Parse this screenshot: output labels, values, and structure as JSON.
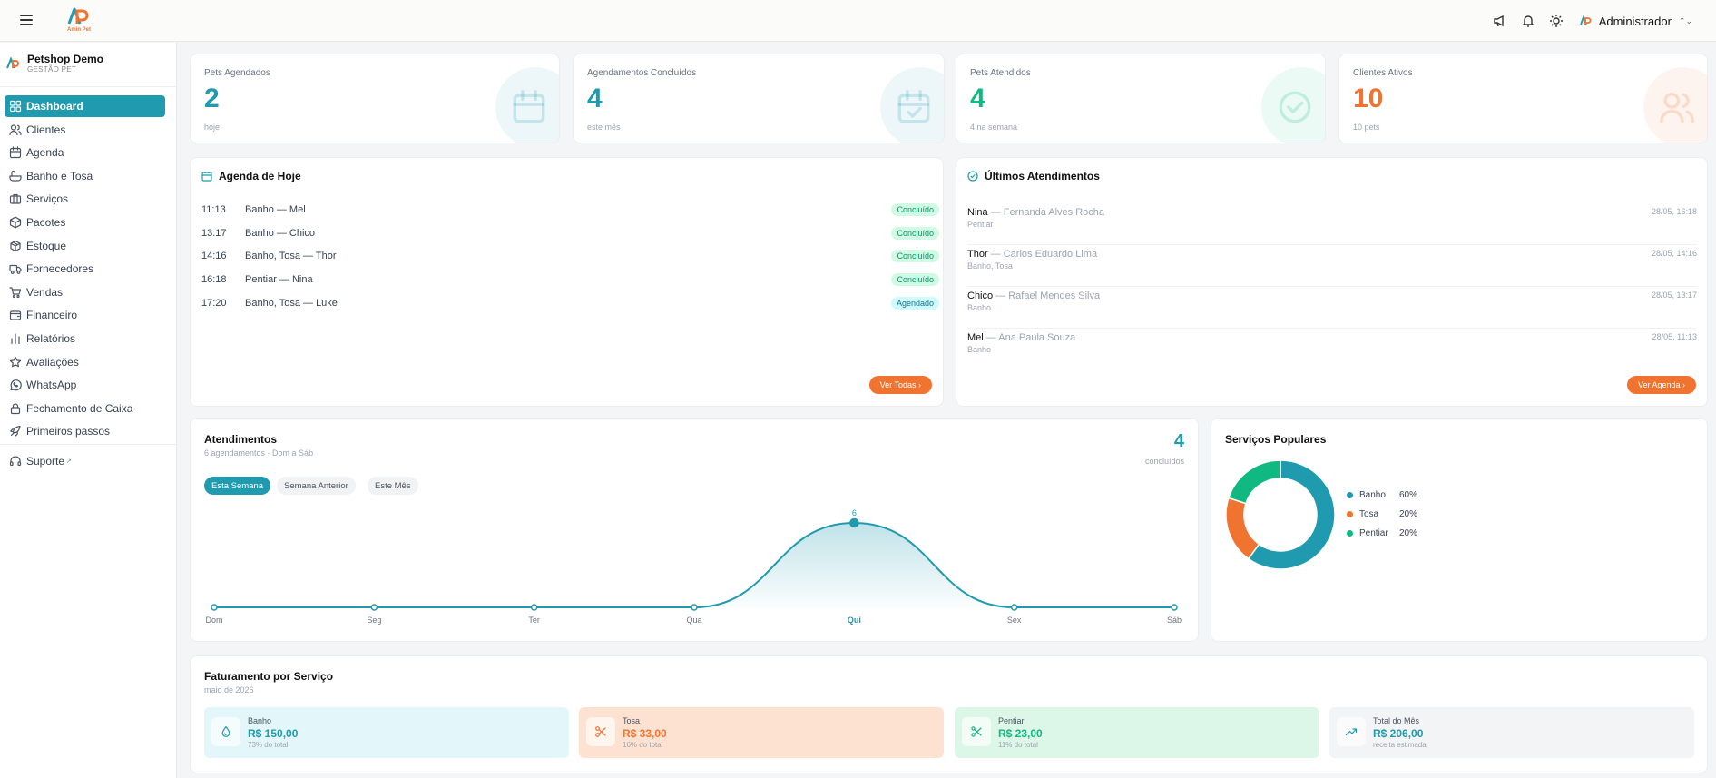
{
  "topbar": {
    "menu_icon": "hamburger-icon",
    "logo_text": "Amin Pet",
    "icons": [
      "megaphone-icon",
      "bell-icon",
      "sun-icon"
    ],
    "user": "Administrador"
  },
  "sidebar": {
    "org_name": "Petshop Demo",
    "org_sub": "GESTÃO PET",
    "items": [
      {
        "label": "Dashboard",
        "icon": "dashboard-icon",
        "active": true
      },
      {
        "label": "Clientes",
        "icon": "users-icon"
      },
      {
        "label": "Agenda",
        "icon": "calendar-icon"
      },
      {
        "label": "Banho e Tosa",
        "icon": "bath-icon"
      },
      {
        "label": "Serviços",
        "icon": "briefcase-icon"
      },
      {
        "label": "Pacotes",
        "icon": "package-icon"
      },
      {
        "label": "Estoque",
        "icon": "box-icon"
      },
      {
        "label": "Fornecedores",
        "icon": "truck-icon"
      },
      {
        "label": "Vendas",
        "icon": "cart-icon"
      },
      {
        "label": "Financeiro",
        "icon": "wallet-icon"
      },
      {
        "label": "Relatórios",
        "icon": "bar-chart-icon"
      },
      {
        "label": "Avaliações",
        "icon": "star-icon"
      },
      {
        "label": "WhatsApp",
        "icon": "whatsapp-icon"
      },
      {
        "label": "Fechamento de Caixa",
        "icon": "lock-icon"
      },
      {
        "label": "Primeiros passos",
        "icon": "rocket-icon"
      }
    ],
    "support": "Suporte"
  },
  "stats": [
    {
      "label": "Pets Agendados",
      "value": "2",
      "sub": "hoje",
      "color": "#1f9aae",
      "icon": "calendar-icon"
    },
    {
      "label": "Agendamentos Concluídos",
      "value": "4",
      "sub": "este mês",
      "color": "#1f9aae",
      "icon": "calendar-check-icon"
    },
    {
      "label": "Pets Atendidos",
      "value": "4",
      "sub": "4 na semana",
      "color": "#10b981",
      "icon": "check-circle-icon"
    },
    {
      "label": "Clientes Ativos",
      "value": "10",
      "sub": "10 pets",
      "color": "#f07430",
      "icon": "users-icon"
    }
  ],
  "agenda": {
    "title": "Agenda de Hoje",
    "rows": [
      {
        "time": "11:13",
        "desc": "Banho — Mel",
        "status": "Concluído"
      },
      {
        "time": "13:17",
        "desc": "Banho — Chico",
        "status": "Concluído"
      },
      {
        "time": "14:16",
        "desc": "Banho, Tosa — Thor",
        "status": "Concluído"
      },
      {
        "time": "16:18",
        "desc": "Pentiar — Nina",
        "status": "Concluído"
      },
      {
        "time": "17:20",
        "desc": "Banho, Tosa — Luke",
        "status": "Agendado"
      }
    ],
    "button": "Ver Todas ›"
  },
  "ultimos": {
    "title": "Últimos Atendimentos",
    "rows": [
      {
        "pet": "Nina",
        "client": " — Fernanda Alves Rocha",
        "service": "Pentiar",
        "date": "28/05, 16:18"
      },
      {
        "pet": "Thor",
        "client": " — Carlos Eduardo Lima",
        "service": "Banho, Tosa",
        "date": "28/05, 14:16"
      },
      {
        "pet": "Chico",
        "client": " — Rafael Mendes Silva",
        "service": "Banho",
        "date": "28/05, 13:17"
      },
      {
        "pet": "Mel",
        "client": " — Ana Paula Souza",
        "service": "Banho",
        "date": "28/05, 11:13"
      }
    ],
    "button": "Ver Agenda ›"
  },
  "atendimentos": {
    "title": "Atendimentos",
    "subtitle": "6 agendamentos · Dom a Sáb",
    "total": "4",
    "total_label": "concluídos",
    "tabs": [
      {
        "label": "Esta Semana",
        "active": true
      },
      {
        "label": "Semana Anterior"
      },
      {
        "label": "Este Mês"
      }
    ]
  },
  "chart_data": {
    "type": "area",
    "categories": [
      "Dom",
      "Seg",
      "Ter",
      "Qua",
      "Qui",
      "Sex",
      "Sáb"
    ],
    "values": [
      0,
      0,
      0,
      0,
      6,
      0,
      0
    ],
    "highlight": "Qui",
    "data_labels": {
      "Qui": "6"
    },
    "color": "#1f9aae"
  },
  "servicos": {
    "title": "Serviços Populares",
    "chart_data": {
      "type": "pie",
      "donut": true,
      "slices": [
        {
          "name": "Banho",
          "pct": "60%",
          "value": 60,
          "color": "#1f9aae"
        },
        {
          "name": "Tosa",
          "pct": "20%",
          "value": 20,
          "color": "#f07430"
        },
        {
          "name": "Pentiar",
          "pct": "20%",
          "value": 20,
          "color": "#10b981"
        }
      ]
    }
  },
  "faturamento": {
    "title": "Faturamento por Serviço",
    "subtitle": "maio de 2026",
    "items": [
      {
        "name": "Banho",
        "value": "R$ 150,00",
        "pct": "73% do total",
        "bg": "#e3f6fa",
        "color": "#1f9aae",
        "icon": "drop-icon"
      },
      {
        "name": "Tosa",
        "value": "R$ 33,00",
        "pct": "16% do total",
        "bg": "#fde2d1",
        "color": "#f07430",
        "icon": "scissors-icon"
      },
      {
        "name": "Pentiar",
        "value": "R$ 23,00",
        "pct": "11% do total",
        "bg": "#dcf7e8",
        "color": "#10b981",
        "icon": "comb-icon"
      },
      {
        "name": "Total do Mês",
        "value": "R$ 206,00",
        "pct": "receita estimada",
        "bg": "#f3f4f6",
        "color": "#1f9aae",
        "icon": "trending-up-icon"
      }
    ]
  }
}
